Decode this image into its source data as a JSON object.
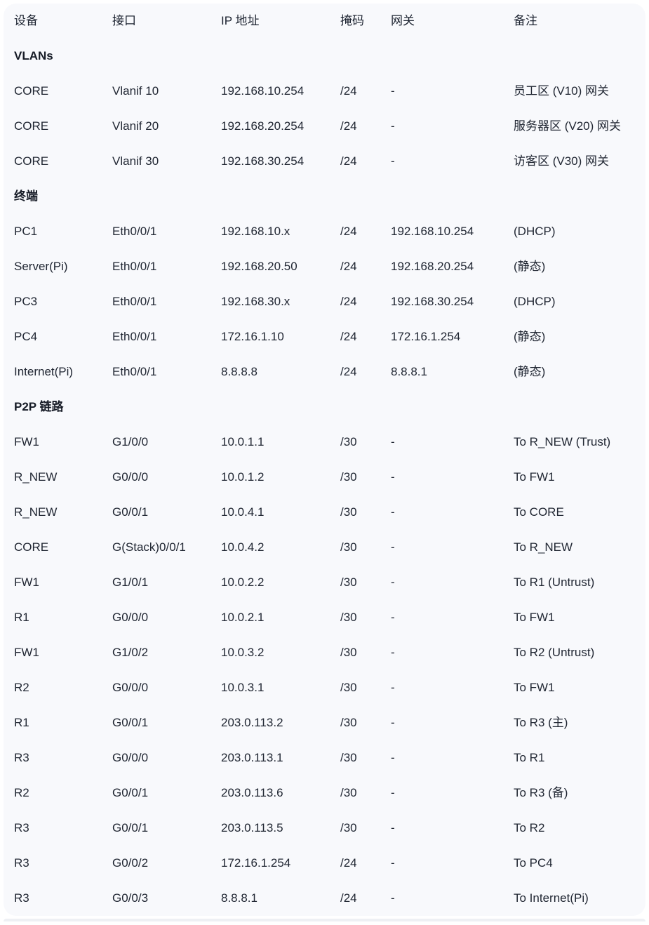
{
  "table": {
    "columns": [
      "设备",
      "接口",
      "IP 地址",
      "掩码",
      "网关",
      "备注"
    ],
    "sections": [
      {
        "title": "VLANs",
        "rows": [
          {
            "device": "CORE",
            "interface": "Vlanif 10",
            "ip": "192.168.10.254",
            "mask": "/24",
            "gateway": "-",
            "note": "员工区 (V10) 网关"
          },
          {
            "device": "CORE",
            "interface": "Vlanif 20",
            "ip": "192.168.20.254",
            "mask": "/24",
            "gateway": "-",
            "note": "服务器区 (V20) 网关"
          },
          {
            "device": "CORE",
            "interface": "Vlanif 30",
            "ip": "192.168.30.254",
            "mask": "/24",
            "gateway": "-",
            "note": "访客区 (V30) 网关"
          }
        ]
      },
      {
        "title": "终端",
        "rows": [
          {
            "device": "PC1",
            "interface": "Eth0/0/1",
            "ip": "192.168.10.x",
            "mask": "/24",
            "gateway": "192.168.10.254",
            "note": "(DHCP)"
          },
          {
            "device": "Server(Pi)",
            "interface": "Eth0/0/1",
            "ip": "192.168.20.50",
            "mask": "/24",
            "gateway": "192.168.20.254",
            "note": "(静态)"
          },
          {
            "device": "PC3",
            "interface": "Eth0/0/1",
            "ip": "192.168.30.x",
            "mask": "/24",
            "gateway": "192.168.30.254",
            "note": "(DHCP)"
          },
          {
            "device": "PC4",
            "interface": "Eth0/0/1",
            "ip": "172.16.1.10",
            "mask": "/24",
            "gateway": "172.16.1.254",
            "note": "(静态)"
          },
          {
            "device": "Internet(Pi)",
            "interface": "Eth0/0/1",
            "ip": "8.8.8.8",
            "mask": "/24",
            "gateway": "8.8.8.1",
            "note": "(静态)"
          }
        ]
      },
      {
        "title": "P2P 链路",
        "rows": [
          {
            "device": "FW1",
            "interface": "G1/0/0",
            "ip": "10.0.1.1",
            "mask": "/30",
            "gateway": "-",
            "note": "To R_NEW (Trust)"
          },
          {
            "device": "R_NEW",
            "interface": "G0/0/0",
            "ip": "10.0.1.2",
            "mask": "/30",
            "gateway": "-",
            "note": "To FW1"
          },
          {
            "device": "R_NEW",
            "interface": "G0/0/1",
            "ip": "10.0.4.1",
            "mask": "/30",
            "gateway": "-",
            "note": "To CORE"
          },
          {
            "device": "CORE",
            "interface": "G(Stack)0/0/1",
            "ip": "10.0.4.2",
            "mask": "/30",
            "gateway": "-",
            "note": "To R_NEW"
          },
          {
            "device": "FW1",
            "interface": "G1/0/1",
            "ip": "10.0.2.2",
            "mask": "/30",
            "gateway": "-",
            "note": "To R1 (Untrust)"
          },
          {
            "device": "R1",
            "interface": "G0/0/0",
            "ip": "10.0.2.1",
            "mask": "/30",
            "gateway": "-",
            "note": "To FW1"
          },
          {
            "device": "FW1",
            "interface": "G1/0/2",
            "ip": "10.0.3.2",
            "mask": "/30",
            "gateway": "-",
            "note": "To R2 (Untrust)"
          },
          {
            "device": "R2",
            "interface": "G0/0/0",
            "ip": "10.0.3.1",
            "mask": "/30",
            "gateway": "-",
            "note": "To FW1"
          },
          {
            "device": "R1",
            "interface": "G0/0/1",
            "ip": "203.0.113.2",
            "mask": "/30",
            "gateway": "-",
            "note": "To R3 (主)"
          },
          {
            "device": "R3",
            "interface": "G0/0/0",
            "ip": "203.0.113.1",
            "mask": "/30",
            "gateway": "-",
            "note": "To R1"
          },
          {
            "device": "R2",
            "interface": "G0/0/1",
            "ip": "203.0.113.6",
            "mask": "/30",
            "gateway": "-",
            "note": "To R3 (备)"
          },
          {
            "device": "R3",
            "interface": "G0/0/1",
            "ip": "203.0.113.5",
            "mask": "/30",
            "gateway": "-",
            "note": "To R2"
          },
          {
            "device": "R3",
            "interface": "G0/0/2",
            "ip": "172.16.1.254",
            "mask": "/24",
            "gateway": "-",
            "note": "To PC4"
          },
          {
            "device": "R3",
            "interface": "G0/0/3",
            "ip": "8.8.8.1",
            "mask": "/24",
            "gateway": "-",
            "note": "To Internet(Pi)"
          }
        ]
      }
    ],
    "colors": {
      "card_bg": "#f8f9fc",
      "page_bg": "#ffffff",
      "text": "#212733",
      "section_text": "#161b26"
    }
  }
}
